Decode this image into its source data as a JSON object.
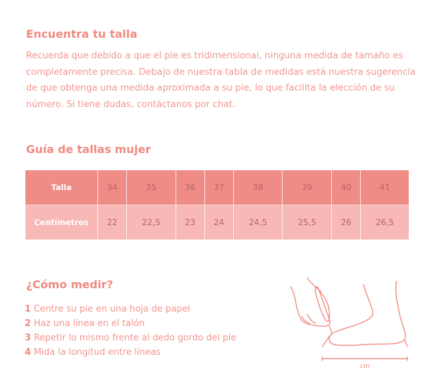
{
  "intro": {
    "title": "Encuentra tu talla",
    "text": "Recuerda que debido a que el pie es tridimensional, ninguna medida de tamaño es completamente precisa. Debajo de nuestra tabla de medidas está nuestra sugerencia de que obtenga una medida aproximada a su pie, lo que facilita la elección de su número. Si tiene dudas, contáctanos por chat."
  },
  "guide": {
    "title": "Guía de tallas mujer",
    "rows": [
      {
        "label": "Talla",
        "values": [
          "34",
          "35",
          "36",
          "37",
          "38",
          "39",
          "40",
          "41"
        ]
      },
      {
        "label": "Centímetros",
        "values": [
          "22",
          "22,5",
          "23",
          "24",
          "24,5",
          "25,5",
          "26",
          "26,5"
        ]
      }
    ]
  },
  "measure": {
    "title": "¿Cómo medir?",
    "steps": [
      {
        "num": "1",
        "text": "Centre su pie en una hoja de papel"
      },
      {
        "num": "2",
        "text": "Haz una línea en el talón"
      },
      {
        "num": "3",
        "text": "Repetir lo mismo frente al dedo gordo del pie"
      },
      {
        "num": "4",
        "text": "Mida la longitud entre líneas"
      }
    ],
    "illustration_unit": "cm"
  },
  "colors": {
    "accent": "#ef8a82",
    "header_row": "#f08c86",
    "second_row": "#f7b8b6"
  }
}
